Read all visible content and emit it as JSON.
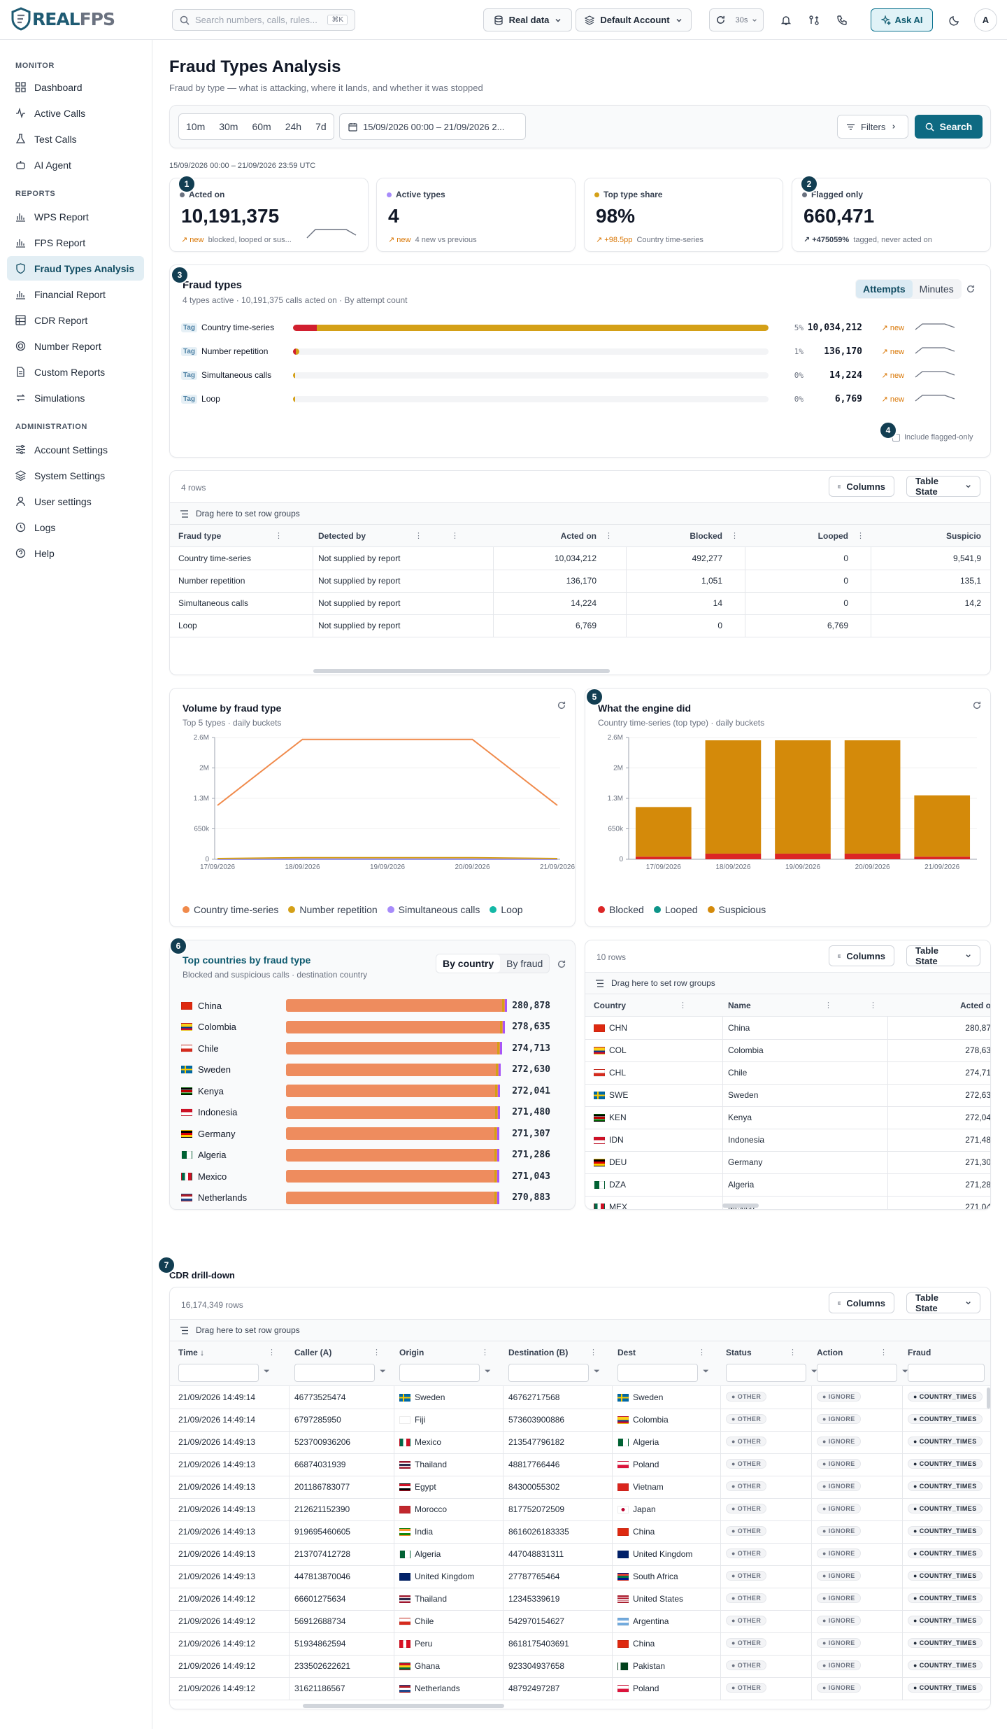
{
  "brand": {
    "logo_r": "REAL",
    "logo_f": "FPS"
  },
  "topbar": {
    "search_placeholder": "Search numbers, calls, rules...",
    "search_shortcut": "⌘K",
    "data_source": "Real data",
    "account": "Default Account",
    "refresh_interval": "30s",
    "ask_ai": "Ask AI",
    "avatar": "A"
  },
  "sidebar": {
    "monitor_heading": "MONITOR",
    "reports_heading": "REPORTS",
    "admin_heading": "ADMINISTRATION",
    "monitor": [
      "Dashboard",
      "Active Calls",
      "Test Calls",
      "AI Agent"
    ],
    "reports": [
      "WPS Report",
      "FPS Report",
      "Fraud Types Analysis",
      "Financial Report",
      "CDR Report",
      "Number Report",
      "Custom Reports",
      "Simulations"
    ],
    "admin": [
      "Account Settings",
      "System Settings",
      "User settings",
      "Logs",
      "Help"
    ]
  },
  "page": {
    "title": "Fraud Types Analysis",
    "subtitle": "Fraud by type — what is attacking, where it lands, and whether it was stopped",
    "range_text": "15/09/2026 00:00 – 21/09/2026 23:59 UTC"
  },
  "filters": {
    "presets": [
      "10m",
      "30m",
      "60m",
      "24h",
      "7d"
    ],
    "date_range": "15/09/2026 00:00 – 21/09/2026 2...",
    "filters_label": "Filters",
    "search_label": "Search"
  },
  "markers": [
    "1",
    "2",
    "3",
    "4",
    "5",
    "6",
    "7"
  ],
  "kpis": [
    {
      "label": "Acted on",
      "value": "10,191,375",
      "delta": "new",
      "note": "blocked, looped or sus...",
      "dot": "#6b7280"
    },
    {
      "label": "Active types",
      "value": "4",
      "delta": "new",
      "note": "4 new vs previous",
      "dot": "#a78bfa"
    },
    {
      "label": "Top type share",
      "value": "98%",
      "delta": "+98.5pp",
      "note": "Country time-series",
      "dot": "#d4a017"
    },
    {
      "label": "Flagged only",
      "value": "660,471",
      "delta": "+475059%",
      "note": "tagged, never acted on",
      "dot": "#6b7280"
    }
  ],
  "fraud_types": {
    "title": "Fraud types",
    "subtitle": "4 types active · 10,191,375 calls acted on · By attempt count",
    "toggle": [
      "Attempts",
      "Minutes"
    ],
    "tag_label": "Tag",
    "include_flagged": "Include flagged-only",
    "rows": [
      {
        "name": "Country time-series",
        "pct": "5%",
        "value": "10,034,212",
        "delta": "new",
        "fill": 1.0,
        "red": 0.05
      },
      {
        "name": "Number repetition",
        "pct": "1%",
        "value": "136,170",
        "delta": "new",
        "fill": 0.0136,
        "red": 0.001
      },
      {
        "name": "Simultaneous calls",
        "pct": "0%",
        "value": "14,224",
        "delta": "new",
        "fill": 0.0014,
        "red": 0
      },
      {
        "name": "Loop",
        "pct": "0%",
        "value": "6,769",
        "delta": "new",
        "fill": 0.0007,
        "red": 0
      }
    ]
  },
  "fraud_table": {
    "row_count": "4 rows",
    "columns_btn": "Columns",
    "table_state": "Table State",
    "group_hint": "Drag here to set row groups",
    "headers": [
      "Fraud type",
      "Detected by",
      "Acted on",
      "Blocked",
      "Looped",
      "Suspicio"
    ],
    "rows": [
      [
        "Country time-series",
        "Not supplied by report",
        "10,034,212",
        "492,277",
        "0",
        "9,541,9"
      ],
      [
        "Number repetition",
        "Not supplied by report",
        "136,170",
        "1,051",
        "0",
        "135,1"
      ],
      [
        "Simultaneous calls",
        "Not supplied by report",
        "14,224",
        "14",
        "0",
        "14,2"
      ],
      [
        "Loop",
        "Not supplied by report",
        "6,769",
        "0",
        "6,769",
        ""
      ]
    ]
  },
  "volume_chart": {
    "title": "Volume by fraud type",
    "subtitle": "Top 5 types · daily buckets",
    "legend": [
      "Country time-series",
      "Number repetition",
      "Simultaneous calls",
      "Loop"
    ],
    "colors": [
      "#f08a4b",
      "#d4a017",
      "#a78bfa",
      "#14b8a6"
    ]
  },
  "engine_chart": {
    "title": "What the engine did",
    "subtitle": "Country time-series (top type) · daily buckets",
    "legend": [
      "Blocked",
      "Looped",
      "Suspicious"
    ],
    "colors": [
      "#dc2626",
      "#0d9488",
      "#d48a0a"
    ]
  },
  "chart_data": [
    {
      "type": "line",
      "x": [
        "17/09/2026",
        "18/09/2026",
        "19/09/2026",
        "20/09/2026",
        "21/09/2026"
      ],
      "yticks": [
        "0",
        "650k",
        "1.3M",
        "2M",
        "2.6M"
      ],
      "ylim": [
        0,
        2600000
      ],
      "series": [
        {
          "name": "Country time-series",
          "values": [
            1150000,
            2560000,
            2560000,
            2560000,
            1150000
          ]
        },
        {
          "name": "Number repetition",
          "values": [
            15000,
            35000,
            35000,
            35000,
            15000
          ]
        },
        {
          "name": "Simultaneous calls",
          "values": [
            2000,
            4000,
            4000,
            4000,
            2000
          ]
        },
        {
          "name": "Loop",
          "values": [
            1000,
            2000,
            2000,
            2000,
            1000
          ]
        }
      ]
    },
    {
      "type": "bar",
      "categories": [
        "17/09/2026",
        "18/09/2026",
        "19/09/2026",
        "20/09/2026",
        "21/09/2026"
      ],
      "yticks": [
        "0",
        "650k",
        "1.3M",
        "2M",
        "2.6M"
      ],
      "ylim": [
        0,
        2600000
      ],
      "series": [
        {
          "name": "Blocked",
          "values": [
            55000,
            120000,
            120000,
            120000,
            55000
          ]
        },
        {
          "name": "Looped",
          "values": [
            0,
            0,
            0,
            0,
            0
          ]
        },
        {
          "name": "Suspicious",
          "values": [
            1060000,
            2420000,
            2420000,
            2420000,
            1310000
          ]
        }
      ]
    }
  ],
  "countries": {
    "title": "Top countries by fraud type",
    "subtitle": "Blocked and suspicious calls · destination country",
    "toggle": [
      "By country",
      "By fraud"
    ],
    "rows": [
      {
        "name": "China",
        "value": "280,878",
        "fill": 1.0
      },
      {
        "name": "Colombia",
        "value": "278,635",
        "fill": 0.992
      },
      {
        "name": "Chile",
        "value": "274,713",
        "fill": 0.978
      },
      {
        "name": "Sweden",
        "value": "272,630",
        "fill": 0.971
      },
      {
        "name": "Kenya",
        "value": "272,041",
        "fill": 0.969
      },
      {
        "name": "Indonesia",
        "value": "271,480",
        "fill": 0.967
      },
      {
        "name": "Germany",
        "value": "271,307",
        "fill": 0.966
      },
      {
        "name": "Algeria",
        "value": "271,286",
        "fill": 0.966
      },
      {
        "name": "Mexico",
        "value": "271,043",
        "fill": 0.965
      },
      {
        "name": "Netherlands",
        "value": "270,883",
        "fill": 0.964
      }
    ]
  },
  "country_table": {
    "row_count": "10 rows",
    "headers": [
      "Country",
      "Name",
      "Acted o"
    ],
    "rows": [
      [
        "CHN",
        "China",
        "280,87"
      ],
      [
        "COL",
        "Colombia",
        "278,63"
      ],
      [
        "CHL",
        "Chile",
        "274,71"
      ],
      [
        "SWE",
        "Sweden",
        "272,63"
      ],
      [
        "KEN",
        "Kenya",
        "272,04"
      ],
      [
        "IDN",
        "Indonesia",
        "271,48"
      ],
      [
        "DEU",
        "Germany",
        "271,30"
      ],
      [
        "DZA",
        "Algeria",
        "271,28"
      ],
      [
        "MEX",
        "Mexico",
        "271,04"
      ],
      [
        "NLD",
        "Netherlands",
        "270,88"
      ]
    ]
  },
  "cdr": {
    "title": "CDR drill-down",
    "row_count": "16,174,349 rows",
    "headers": [
      "Time",
      "Caller (A)",
      "Origin",
      "Destination (B)",
      "Dest",
      "Status",
      "Action",
      "Fraud"
    ],
    "status": "OTHER",
    "action": "IGNORE",
    "fraud": "COUNTRY_TIMES",
    "rows": [
      [
        "21/09/2026 14:49:14",
        "46773525474",
        "Sweden",
        "46762717568",
        "Sweden"
      ],
      [
        "21/09/2026 14:49:14",
        "6797285950",
        "Fiji",
        "573603900886",
        "Colombia"
      ],
      [
        "21/09/2026 14:49:13",
        "523700936206",
        "Mexico",
        "213547796182",
        "Algeria"
      ],
      [
        "21/09/2026 14:49:13",
        "66874031939",
        "Thailand",
        "48817766446",
        "Poland"
      ],
      [
        "21/09/2026 14:49:13",
        "201186783077",
        "Egypt",
        "84300055302",
        "Vietnam"
      ],
      [
        "21/09/2026 14:49:13",
        "212621152390",
        "Morocco",
        "817752072509",
        "Japan"
      ],
      [
        "21/09/2026 14:49:13",
        "919695460605",
        "India",
        "8616026183335",
        "China"
      ],
      [
        "21/09/2026 14:49:13",
        "213707412728",
        "Algeria",
        "447048831311",
        "United Kingdom"
      ],
      [
        "21/09/2026 14:49:13",
        "447813870046",
        "United Kingdom",
        "27787765464",
        "South Africa"
      ],
      [
        "21/09/2026 14:49:12",
        "66601275634",
        "Thailand",
        "12345339619",
        "United States"
      ],
      [
        "21/09/2026 14:49:12",
        "56912688734",
        "Chile",
        "542970154627",
        "Argentina"
      ],
      [
        "21/09/2026 14:49:12",
        "51934862594",
        "Peru",
        "8618175403691",
        "China"
      ],
      [
        "21/09/2026 14:49:12",
        "233502622621",
        "Ghana",
        "923304937658",
        "Pakistan"
      ],
      [
        "21/09/2026 14:49:12",
        "31621186567",
        "Netherlands",
        "48792497287",
        "Poland"
      ]
    ]
  }
}
